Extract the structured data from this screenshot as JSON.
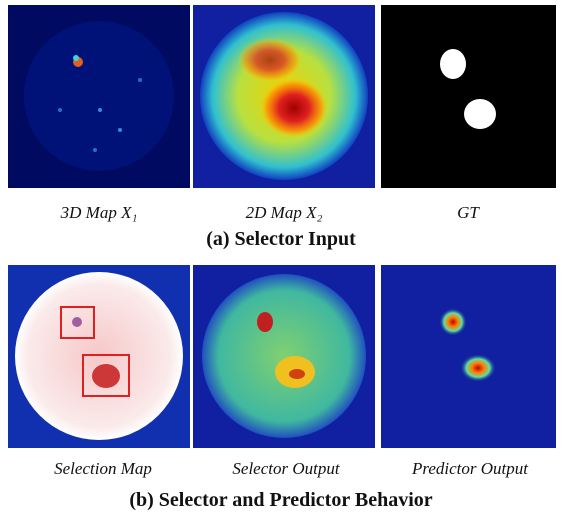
{
  "panels": [
    {
      "caption": "(a) Selector Input",
      "images": [
        {
          "label": "3D Map X₁"
        },
        {
          "label": "2D Map X₂"
        },
        {
          "label": "GT"
        }
      ]
    },
    {
      "caption": "(b) Selector and Predictor Behavior",
      "images": [
        {
          "label": "Selection Map"
        },
        {
          "label": "Selector Output"
        },
        {
          "label": "Predictor Output"
        }
      ]
    }
  ]
}
